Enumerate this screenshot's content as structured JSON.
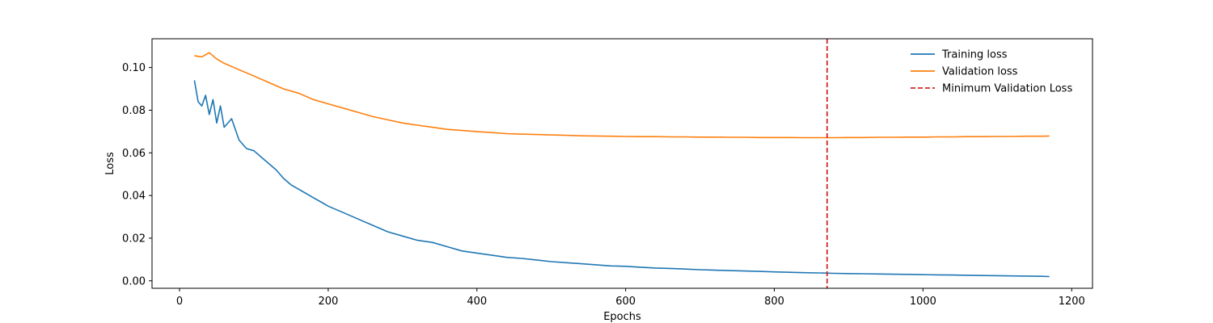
{
  "chart_data": {
    "type": "line",
    "title": "",
    "xlabel": "Epochs",
    "ylabel": "Loss",
    "xlim": [
      -37,
      1228
    ],
    "ylim": [
      -0.0035,
      0.1135
    ],
    "x_ticks": [
      0,
      200,
      400,
      600,
      800,
      1000,
      1200
    ],
    "y_ticks": [
      0.0,
      0.02,
      0.04,
      0.06,
      0.08,
      0.1
    ],
    "x_tick_labels": [
      "0",
      "200",
      "400",
      "600",
      "800",
      "1000",
      "1200"
    ],
    "y_tick_labels": [
      "0.00",
      "0.02",
      "0.04",
      "0.06",
      "0.08",
      "0.10"
    ],
    "grid": false,
    "legend_position": "top-right",
    "series": [
      {
        "name": "Training loss",
        "color": "#1f77b4",
        "style": "solid",
        "x": [
          20,
          25,
          30,
          35,
          40,
          45,
          50,
          55,
          60,
          70,
          80,
          90,
          100,
          110,
          120,
          130,
          140,
          150,
          160,
          170,
          180,
          190,
          200,
          220,
          240,
          260,
          280,
          300,
          320,
          340,
          360,
          380,
          400,
          420,
          440,
          460,
          480,
          500,
          520,
          540,
          560,
          580,
          600,
          620,
          640,
          660,
          680,
          700,
          720,
          740,
          760,
          780,
          800,
          820,
          840,
          860,
          880,
          900,
          920,
          940,
          960,
          980,
          1000,
          1020,
          1040,
          1060,
          1080,
          1100,
          1120,
          1140,
          1160,
          1170
        ],
        "y": [
          0.094,
          0.084,
          0.082,
          0.087,
          0.078,
          0.085,
          0.074,
          0.082,
          0.072,
          0.076,
          0.066,
          0.062,
          0.061,
          0.058,
          0.055,
          0.052,
          0.048,
          0.045,
          0.043,
          0.041,
          0.039,
          0.037,
          0.035,
          0.032,
          0.029,
          0.026,
          0.023,
          0.021,
          0.019,
          0.018,
          0.016,
          0.014,
          0.013,
          0.012,
          0.011,
          0.0105,
          0.0098,
          0.009,
          0.0085,
          0.008,
          0.0075,
          0.007,
          0.0068,
          0.0064,
          0.006,
          0.0058,
          0.0055,
          0.0052,
          0.005,
          0.0048,
          0.0046,
          0.0044,
          0.0042,
          0.004,
          0.0038,
          0.0037,
          0.0035,
          0.0034,
          0.0033,
          0.0032,
          0.0031,
          0.003,
          0.0029,
          0.0028,
          0.0027,
          0.0026,
          0.0025,
          0.0024,
          0.0023,
          0.0022,
          0.0021,
          0.002
        ]
      },
      {
        "name": "Validation loss",
        "color": "#ff7f0e",
        "style": "solid",
        "x": [
          20,
          30,
          40,
          50,
          60,
          80,
          100,
          120,
          140,
          160,
          180,
          200,
          220,
          240,
          260,
          280,
          300,
          320,
          340,
          360,
          380,
          400,
          420,
          440,
          460,
          480,
          500,
          520,
          540,
          560,
          580,
          600,
          620,
          640,
          660,
          680,
          700,
          720,
          740,
          760,
          780,
          800,
          820,
          840,
          860,
          880,
          900,
          920,
          940,
          960,
          980,
          1000,
          1020,
          1040,
          1060,
          1080,
          1100,
          1120,
          1140,
          1160,
          1170
        ],
        "y": [
          0.1055,
          0.105,
          0.107,
          0.104,
          0.102,
          0.099,
          0.096,
          0.093,
          0.09,
          0.088,
          0.085,
          0.083,
          0.081,
          0.079,
          0.077,
          0.0755,
          0.074,
          0.073,
          0.072,
          0.071,
          0.0705,
          0.07,
          0.0695,
          0.069,
          0.0688,
          0.0686,
          0.0684,
          0.0682,
          0.068,
          0.0679,
          0.0678,
          0.0677,
          0.0676,
          0.0676,
          0.0675,
          0.0675,
          0.0674,
          0.0674,
          0.0673,
          0.0673,
          0.0672,
          0.0672,
          0.0672,
          0.0671,
          0.0671,
          0.0671,
          0.0672,
          0.0672,
          0.0673,
          0.0673,
          0.0674,
          0.0674,
          0.0675,
          0.0675,
          0.0676,
          0.0676,
          0.0677,
          0.0677,
          0.0678,
          0.0678,
          0.0679
        ]
      }
    ],
    "annotations": [
      {
        "type": "vline",
        "name": "Minimum Validation Loss",
        "x": 871,
        "color": "#d62728",
        "style": "dashed"
      }
    ]
  }
}
